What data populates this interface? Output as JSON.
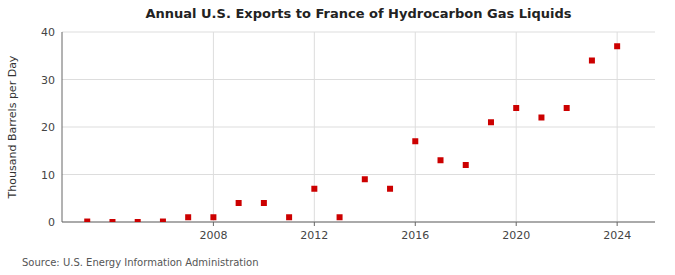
{
  "chart_data": {
    "type": "scatter",
    "title": "Annual U.S. Exports to France of Hydrocarbon Gas Liquids",
    "y_label": "Thousand Barrels per Day",
    "annotations": [
      "Source: U.S. Energy Information Administration"
    ],
    "x": [
      2003,
      2004,
      2005,
      2006,
      2007,
      2008,
      2009,
      2010,
      2011,
      2012,
      2013,
      2014,
      2015,
      2016,
      2017,
      2018,
      2019,
      2020,
      2021,
      2022,
      2023,
      2024
    ],
    "values": [
      0.1,
      0.0,
      0.0,
      0.1,
      1.0,
      1.0,
      4.0,
      4.0,
      1.0,
      7.0,
      1.0,
      9.0,
      7.0,
      17.0,
      13.0,
      12.0,
      21.0,
      24.0,
      22.0,
      24.0,
      34.0,
      37.0
    ],
    "color": "#cc0000",
    "marker": "square",
    "xlim": [
      2002,
      2025.5
    ],
    "ylim": [
      0,
      40
    ],
    "xticks": [
      2008,
      2012,
      2016,
      2020,
      2024
    ],
    "yticks": [
      0,
      10,
      20,
      30,
      40
    ],
    "grid": true
  }
}
